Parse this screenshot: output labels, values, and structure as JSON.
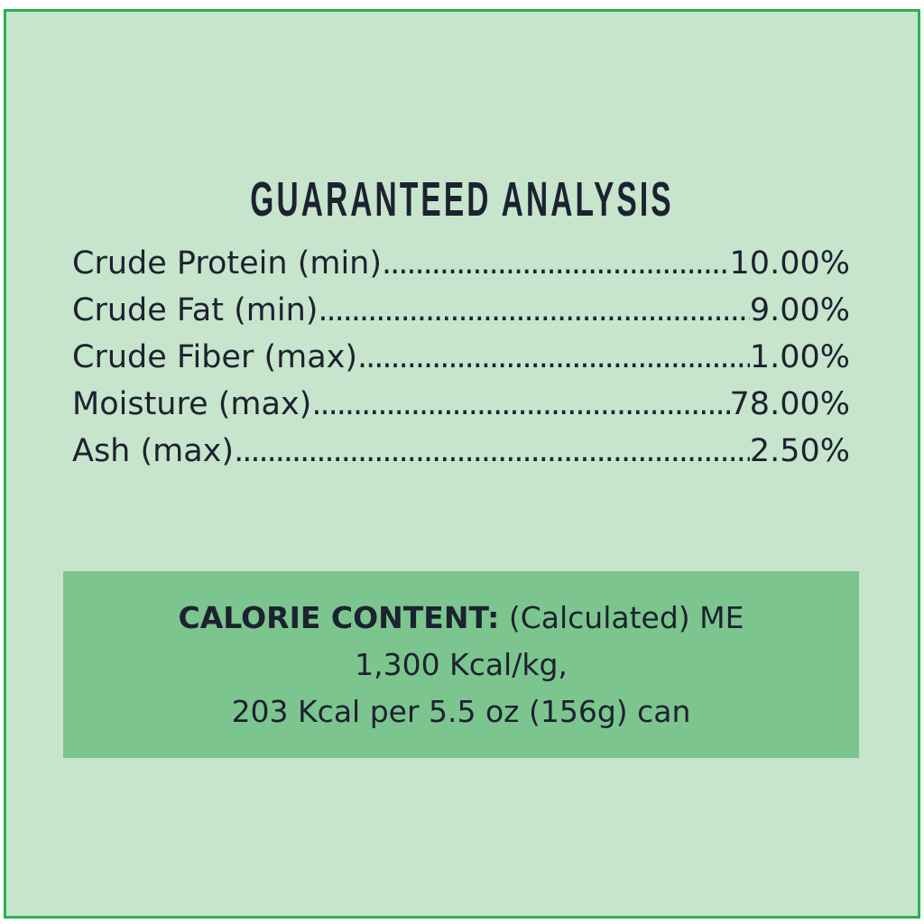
{
  "title": "GUARANTEED ANALYSIS",
  "rows": [
    {
      "label": "Crude Protein (min)",
      "value": "10.00%"
    },
    {
      "label": "Crude Fat (min)",
      "value": "9.00%"
    },
    {
      "label": "Crude Fiber (max)",
      "value": "1.00%"
    },
    {
      "label": "Moisture (max)",
      "value": "78.00%"
    },
    {
      "label": "Ash (max)",
      "value": "2.50%"
    }
  ],
  "calorie": {
    "heading": "CALORIE CONTENT:",
    "line1_rest": " (Calculated) ME",
    "line2": "1,300 Kcal/kg,",
    "line3": "203 Kcal per 5.5 oz (156g) can"
  },
  "colors": {
    "background": "#c6e5cc",
    "border": "#2db04f",
    "box": "#7cc58f",
    "text": "#1c2230"
  }
}
